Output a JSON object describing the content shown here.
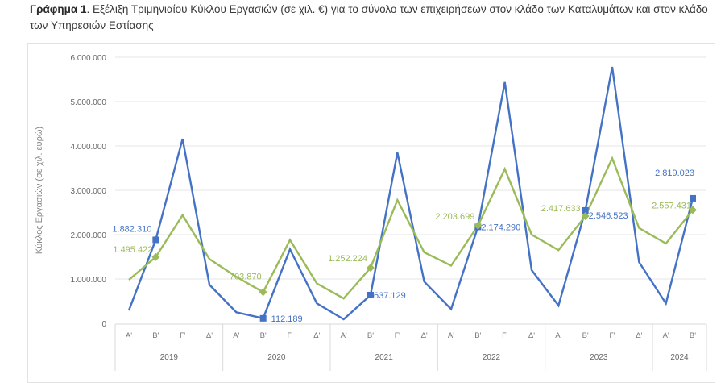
{
  "caption": {
    "prefix": "Γράφημα 1",
    "text": ". Εξέλιξη Τριμηνιαίου Κύκλου Εργασιών (σε χιλ. €) για το σύνολο των επιχειρήσεων στον κλάδο των Καταλυμάτων και στον κλάδο των Υπηρεσιών Εστίασης"
  },
  "chart_data": {
    "type": "line",
    "title": "Εξέλιξη Τριμηνιαίου Κύκλου Εργασιών (σε χιλ. €) για το σύνολο των επιχειρήσεων στον κλάδο των Καταλυμάτων και στον κλάδο των Υπηρεσιών Εστίασης",
    "xlabel": "",
    "ylabel": "Κύκλος Εργασιών (σε χιλ. ευρώ)",
    "ylim": [
      0,
      6000000
    ],
    "yticks": [
      0,
      1000000,
      2000000,
      3000000,
      4000000,
      5000000,
      6000000
    ],
    "ytick_labels": [
      "0",
      "1.000.000",
      "2.000.000",
      "3.000.000",
      "4.000.000",
      "5.000.000",
      "6.000.000"
    ],
    "grid": true,
    "legend": "none",
    "years": [
      {
        "label": "2019",
        "quarters": 4
      },
      {
        "label": "2020",
        "quarters": 4
      },
      {
        "label": "2021",
        "quarters": 4
      },
      {
        "label": "2022",
        "quarters": 4
      },
      {
        "label": "2023",
        "quarters": 4
      },
      {
        "label": "2024",
        "quarters": 2
      }
    ],
    "categories": [
      "Α'",
      "Β'",
      "Γ'",
      "Δ'",
      "Α'",
      "Β'",
      "Γ'",
      "Δ'",
      "Α'",
      "Β'",
      "Γ'",
      "Δ'",
      "Α'",
      "Β'",
      "Γ'",
      "Δ'",
      "Α'",
      "Β'",
      "Γ'",
      "Δ'",
      "Α'",
      "Β'"
    ],
    "series": [
      {
        "name": "Καταλύματα",
        "color": "#4472c4",
        "marker": "square",
        "values": [
          290000,
          1882310,
          4160000,
          870000,
          250000,
          112189,
          1670000,
          450000,
          90000,
          637129,
          3850000,
          940000,
          320000,
          2174290,
          5440000,
          1200000,
          400000,
          2546523,
          5780000,
          1380000,
          450000,
          2819023
        ],
        "labeled_points": [
          {
            "index": 1,
            "label": "1.882.310"
          },
          {
            "index": 5,
            "label": "112.189"
          },
          {
            "index": 9,
            "label": "637.129"
          },
          {
            "index": 13,
            "label": "2.174.290"
          },
          {
            "index": 17,
            "label": "2.546.523"
          },
          {
            "index": 21,
            "label": "2.819.023"
          }
        ]
      },
      {
        "name": "Υπηρεσίες Εστίασης",
        "color": "#9bbb59",
        "marker": "diamond",
        "values": [
          980000,
          1495422,
          2440000,
          1450000,
          1050000,
          703870,
          1880000,
          900000,
          560000,
          1252224,
          2780000,
          1600000,
          1300000,
          2203699,
          3480000,
          2000000,
          1650000,
          2417633,
          3720000,
          2150000,
          1800000,
          2557431
        ],
        "labeled_points": [
          {
            "index": 1,
            "label": "1.495.422"
          },
          {
            "index": 5,
            "label": "703.870"
          },
          {
            "index": 9,
            "label": "1.252.224"
          },
          {
            "index": 13,
            "label": "2.203.699"
          },
          {
            "index": 17,
            "label": "2.417.633"
          },
          {
            "index": 21,
            "label": "2.557.431"
          }
        ]
      }
    ]
  }
}
